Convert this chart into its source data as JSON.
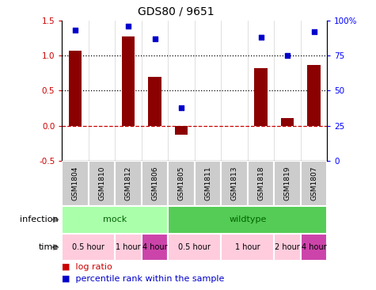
{
  "title": "GDS80 / 9651",
  "samples": [
    "GSM1804",
    "GSM1810",
    "GSM1812",
    "GSM1806",
    "GSM1805",
    "GSM1811",
    "GSM1813",
    "GSM1818",
    "GSM1819",
    "GSM1807"
  ],
  "log_ratio": [
    1.07,
    0.0,
    1.27,
    0.7,
    -0.13,
    0.0,
    0.0,
    0.82,
    0.11,
    0.87
  ],
  "percentile": [
    93,
    0,
    96,
    87,
    38,
    0,
    0,
    88,
    75,
    92
  ],
  "bar_color": "#8B0000",
  "dot_color": "#0000CC",
  "ylim_left": [
    -0.5,
    1.5
  ],
  "ylim_right": [
    0,
    100
  ],
  "yticks_left": [
    -0.5,
    0.0,
    0.5,
    1.0,
    1.5
  ],
  "yticks_right": [
    0,
    25,
    50,
    75,
    100
  ],
  "ytick_labels_right": [
    "0",
    "25",
    "50",
    "75",
    "100%"
  ],
  "hlines": [
    0.0,
    0.5,
    1.0
  ],
  "hline_styles": [
    "dashed",
    "dotted",
    "dotted"
  ],
  "hline_colors": [
    "#CC0000",
    "black",
    "black"
  ],
  "infection_groups": [
    {
      "label": "mock",
      "start": 0,
      "end": 4,
      "color": "#AAFFAA"
    },
    {
      "label": "wildtype",
      "start": 4,
      "end": 10,
      "color": "#55CC55"
    }
  ],
  "time_groups": [
    {
      "label": "0.5 hour",
      "start": 0,
      "end": 2,
      "color": "#FFCCDD"
    },
    {
      "label": "1 hour",
      "start": 2,
      "end": 3,
      "color": "#FFCCDD"
    },
    {
      "label": "4 hour",
      "start": 3,
      "end": 4,
      "color": "#CC44AA"
    },
    {
      "label": "0.5 hour",
      "start": 4,
      "end": 6,
      "color": "#FFCCDD"
    },
    {
      "label": "1 hour",
      "start": 6,
      "end": 8,
      "color": "#FFCCDD"
    },
    {
      "label": "2 hour",
      "start": 8,
      "end": 9,
      "color": "#FFCCDD"
    },
    {
      "label": "4 hour",
      "start": 9,
      "end": 10,
      "color": "#CC44AA"
    }
  ],
  "legend_log_ratio_color": "#CC0000",
  "legend_percentile_color": "#0000CC",
  "infection_label": "infection",
  "time_label": "time",
  "bar_width": 0.5,
  "sample_box_color": "#CCCCCC",
  "arrow_color": "#888888"
}
